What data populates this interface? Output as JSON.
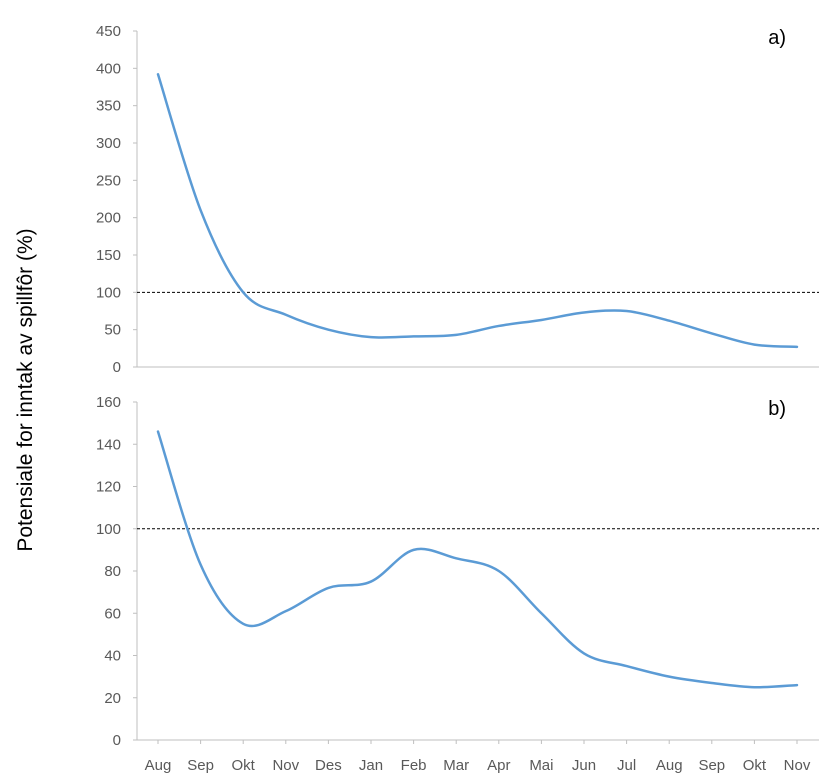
{
  "chart_data": {
    "type": "line",
    "ylabel": "Potensiale for inntak av spillfôr (%)",
    "categories": [
      "Aug",
      "Sep",
      "Okt",
      "Nov",
      "Des",
      "Jan",
      "Feb",
      "Mar",
      "Apr",
      "Mai",
      "Jun",
      "Jul",
      "Aug",
      "Sep",
      "Okt",
      "Nov"
    ],
    "colors": {
      "series": "#5b9bd5",
      "reference": "#000000",
      "axis": "#bfbfbf",
      "ticks": "#595959"
    },
    "panels": [
      {
        "label": "a)",
        "ylim": [
          0,
          450
        ],
        "yticks": [
          0,
          50,
          100,
          150,
          200,
          250,
          300,
          350,
          400,
          450
        ],
        "reference_line": 100,
        "values": [
          392,
          210,
          100,
          70,
          50,
          40,
          41,
          43,
          55,
          63,
          73,
          75,
          62,
          45,
          30,
          27
        ]
      },
      {
        "label": "b)",
        "ylim": [
          0,
          160
        ],
        "yticks": [
          0,
          20,
          40,
          60,
          80,
          100,
          120,
          140,
          160
        ],
        "reference_line": 100,
        "values": [
          146,
          83,
          55,
          61,
          72,
          75,
          90,
          86,
          80,
          60,
          41,
          35,
          30,
          27,
          25,
          26
        ]
      }
    ]
  }
}
